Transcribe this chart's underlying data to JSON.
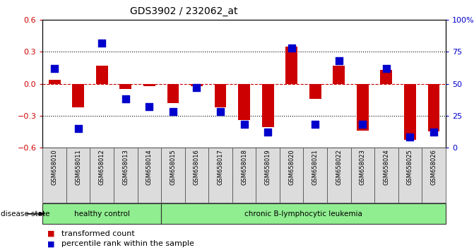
{
  "title": "GDS3902 / 232062_at",
  "samples": [
    "GSM658010",
    "GSM658011",
    "GSM658012",
    "GSM658013",
    "GSM658014",
    "GSM658015",
    "GSM658016",
    "GSM658017",
    "GSM658018",
    "GSM658019",
    "GSM658020",
    "GSM658021",
    "GSM658022",
    "GSM658023",
    "GSM658024",
    "GSM658025",
    "GSM658026"
  ],
  "bar_values": [
    0.04,
    -0.22,
    0.17,
    -0.05,
    -0.02,
    -0.18,
    -0.02,
    -0.22,
    -0.34,
    -0.41,
    0.35,
    -0.14,
    0.17,
    -0.44,
    0.13,
    -0.53,
    -0.45
  ],
  "dot_values": [
    62,
    15,
    82,
    38,
    32,
    28,
    47,
    28,
    18,
    12,
    78,
    18,
    68,
    18,
    62,
    8,
    12
  ],
  "bar_color": "#cc0000",
  "dot_color": "#0000cc",
  "bg_color": "#ffffff",
  "plot_bg": "#ffffff",
  "ylim": [
    -0.6,
    0.6
  ],
  "y2lim": [
    0,
    100
  ],
  "yticks": [
    -0.6,
    -0.3,
    0.0,
    0.3,
    0.6
  ],
  "y2ticks": [
    0,
    25,
    50,
    75,
    100
  ],
  "healthy_count": 5,
  "leukemia_count": 12,
  "healthy_color": "#90ee90",
  "leukemia_color": "#90ee90",
  "healthy_label": "healthy control",
  "leukemia_label": "chronic B-lymphocytic leukemia",
  "disease_state_label": "disease state",
  "legend1_label": "transformed count",
  "legend2_label": "percentile rank within the sample",
  "bar_width": 0.5,
  "dot_size": 45,
  "tick_label_color_left": "#cc0000",
  "tick_label_color_right": "#0000cc",
  "title_fontsize": 10,
  "tick_fontsize": 8,
  "box_facecolor": "#dcdcdc"
}
